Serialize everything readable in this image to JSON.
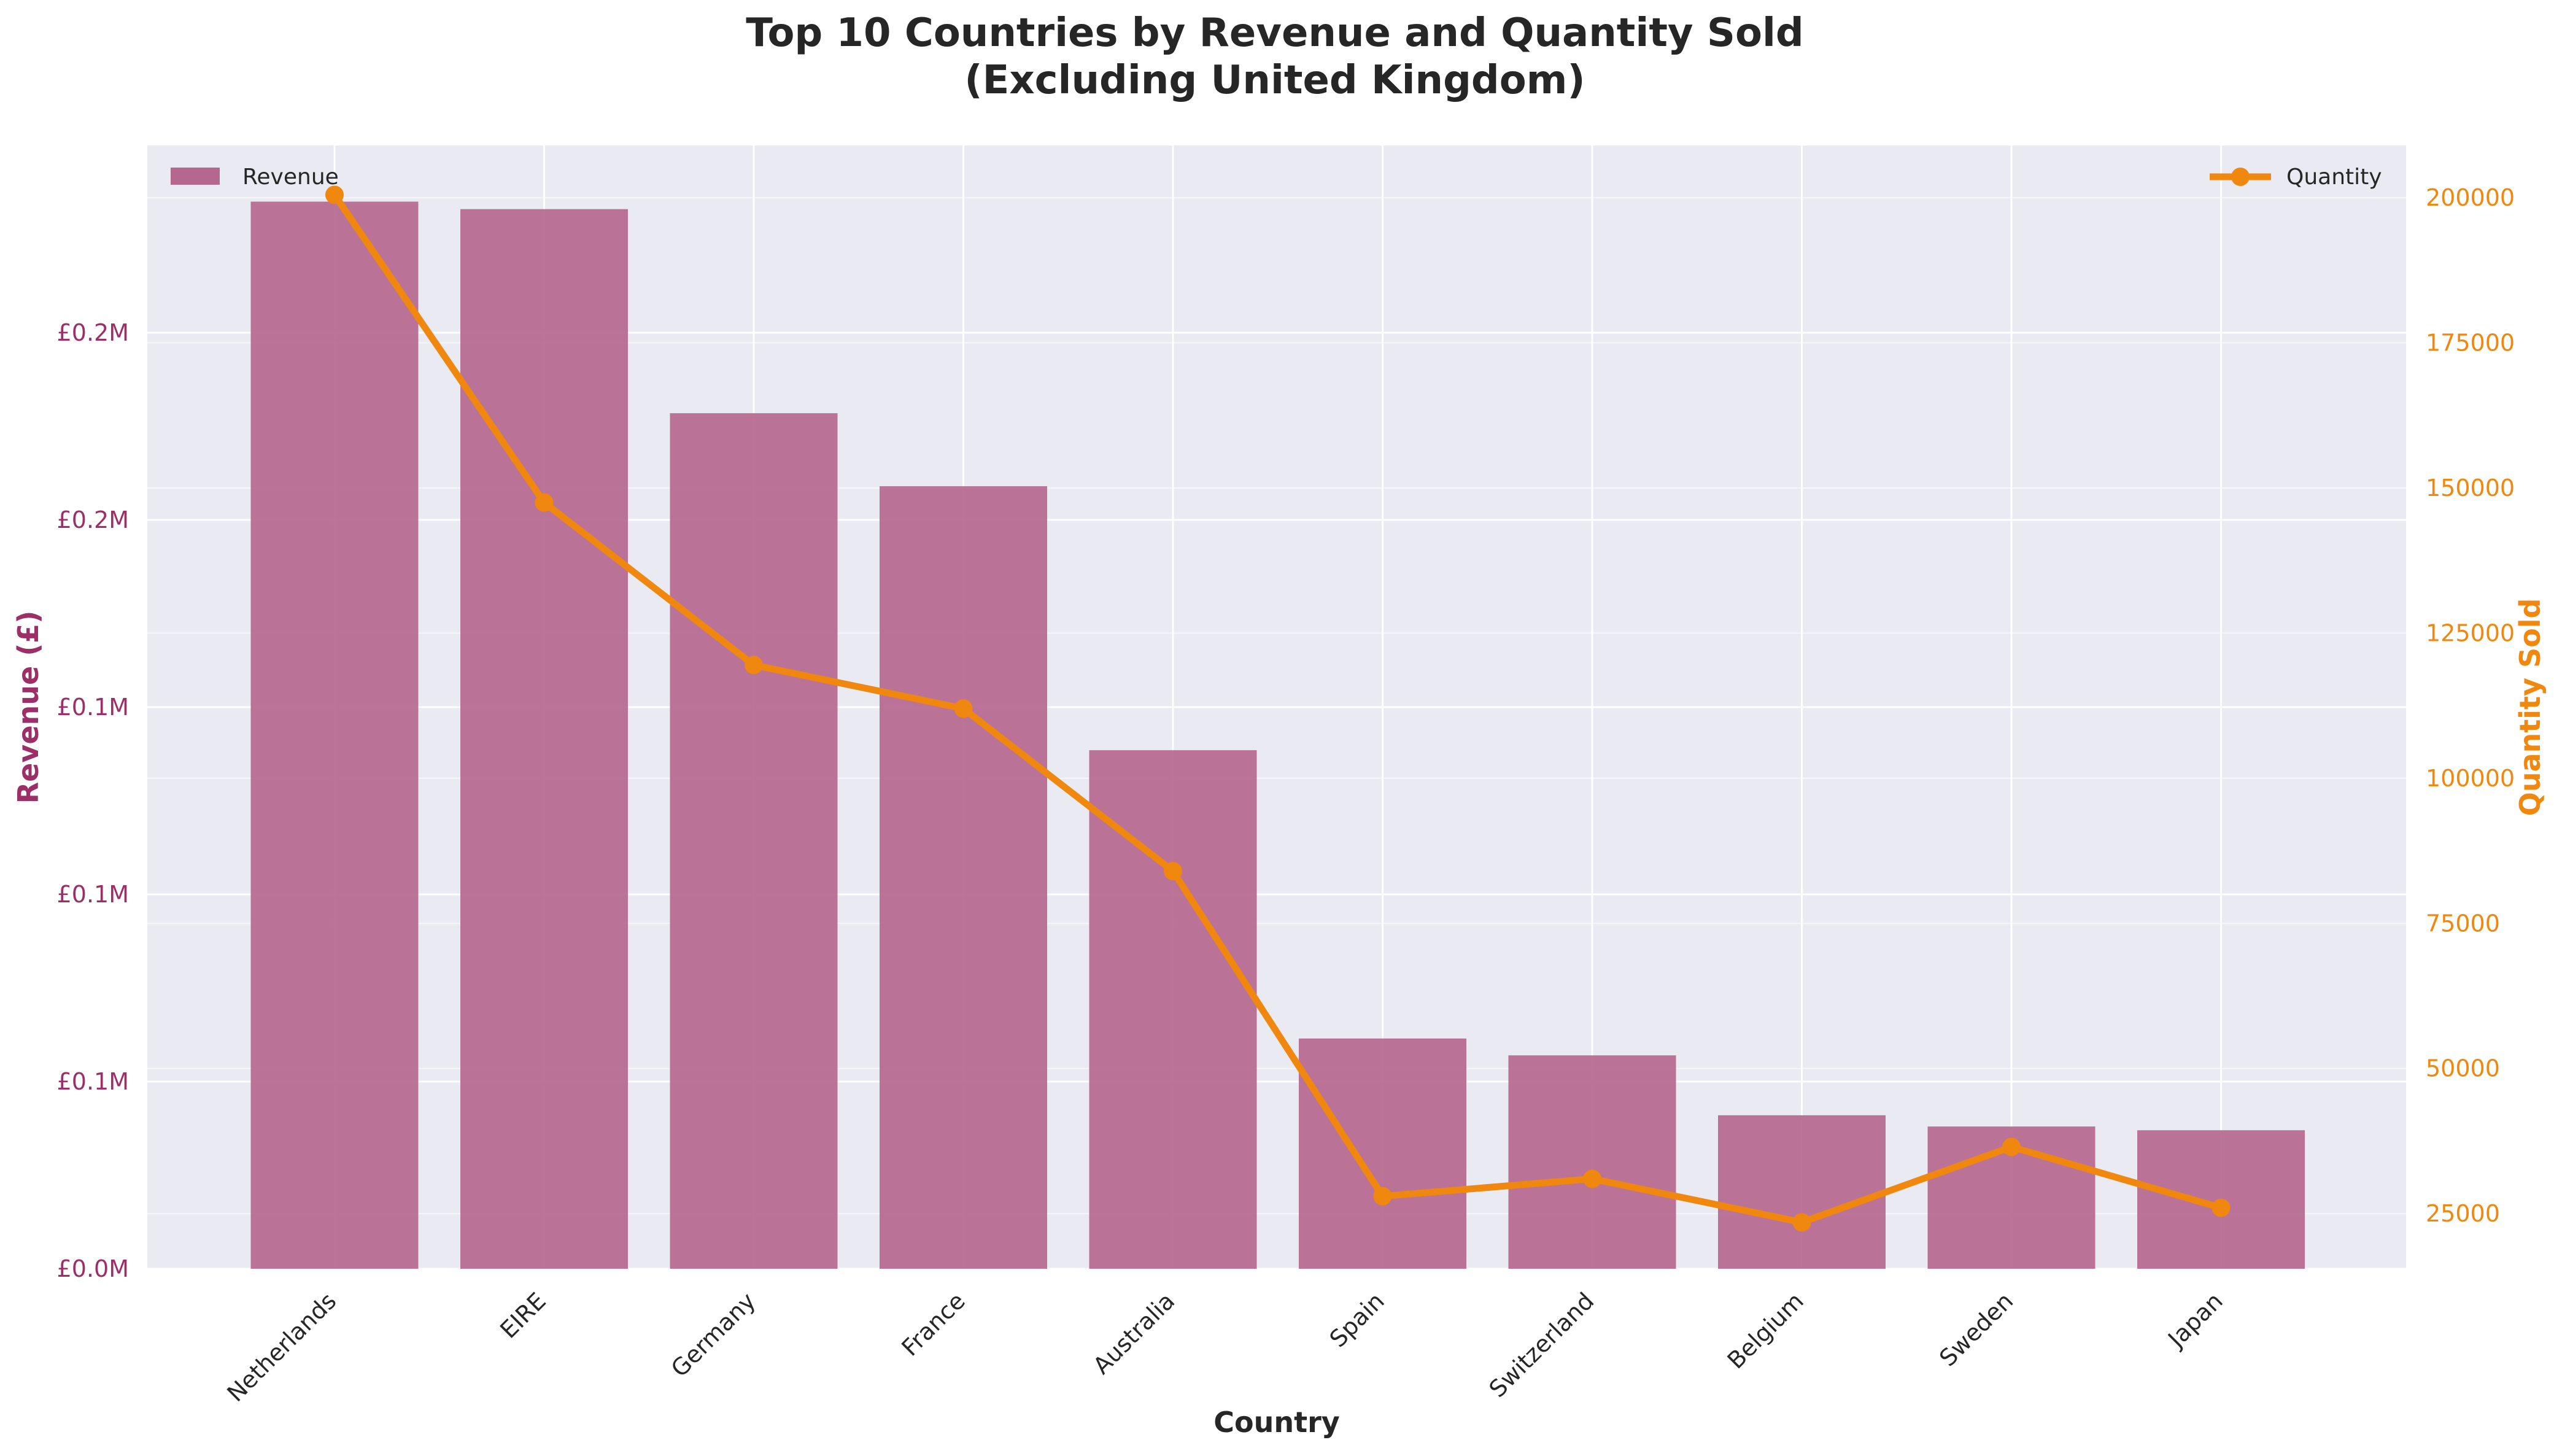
{
  "chart_data": {
    "type": "bar",
    "title": "Top 10 Countries by Revenue and Quantity Sold",
    "subtitle": "(Excluding United Kingdom)",
    "xlabel": "Country",
    "ylabel_left": "Revenue (£)",
    "ylabel_right": "Quantity Sold",
    "categories": [
      "Netherlands",
      "EIRE",
      "Germany",
      "France",
      "Australia",
      "Spain",
      "Switzerland",
      "Belgium",
      "Sweden",
      "Japan"
    ],
    "series": [
      {
        "name": "Revenue",
        "axis": "left",
        "type": "bar",
        "values": [
          285000,
          283000,
          228500,
          209000,
          138500,
          61500,
          57000,
          41000,
          38000,
          37000
        ]
      },
      {
        "name": "Quantity",
        "axis": "right",
        "type": "line",
        "values": [
          200500,
          147500,
          119500,
          112000,
          84000,
          28000,
          31000,
          23500,
          36500,
          26000
        ]
      }
    ],
    "ylim_left": [
      0,
      300000
    ],
    "yticks_left": [
      0,
      50000,
      100000,
      150000,
      200000,
      250000
    ],
    "yticklabels_left": [
      "£0.0M",
      "£0.1M",
      "£0.1M",
      "£0.1M",
      "£0.2M",
      "£0.2M"
    ],
    "ylim_right": [
      15500,
      209000
    ],
    "yticks_right": [
      25000,
      50000,
      75000,
      100000,
      125000,
      150000,
      175000,
      200000
    ],
    "yticklabels_right": [
      "25000",
      "50000",
      "75000",
      "100000",
      "125000",
      "150000",
      "175000",
      "200000"
    ],
    "grid": true,
    "legend_left": "top-left",
    "legend_right": "top-right",
    "colors": {
      "bar": "#b5688f",
      "line": "#f0870f",
      "left_axis": "#9c2f68",
      "right_axis": "#f0870f",
      "plot_bg": "#eaeaf2",
      "grid": "#ffffff",
      "text": "#262626"
    }
  }
}
